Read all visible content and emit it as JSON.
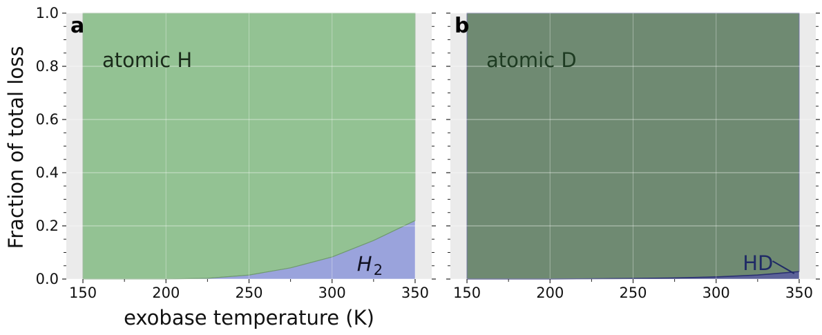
{
  "chart_data": [
    {
      "type": "area",
      "panel_label": "a",
      "x": [
        150,
        175,
        200,
        225,
        250,
        275,
        300,
        325,
        350
      ],
      "series": [
        {
          "name": "H_2",
          "values": [
            0.0,
            0.0,
            0.0,
            0.003,
            0.015,
            0.042,
            0.083,
            0.145,
            0.22
          ],
          "color": "#9aa3dc"
        },
        {
          "name": "atomic H",
          "values": [
            1.0,
            1.0,
            1.0,
            0.997,
            0.985,
            0.958,
            0.917,
            0.855,
            0.78
          ],
          "color": "#93c293"
        }
      ],
      "annotations": [
        {
          "text": "atomic H",
          "color": "#1a2a1a"
        },
        {
          "text": "H",
          "subscript": "2",
          "color": "#111122"
        }
      ],
      "xlabel": "exobase temperature (K)",
      "ylabel": "Fraction of total loss",
      "xlim": [
        140,
        360
      ],
      "ylim": [
        0,
        1
      ],
      "xticks": [
        "150",
        "200",
        "250",
        "300",
        "350"
      ],
      "yticks": [
        "0.0",
        "0.2",
        "0.4",
        "0.6",
        "0.8",
        "1.0"
      ],
      "grid": true,
      "stacked": true
    },
    {
      "type": "area",
      "panel_label": "b",
      "x": [
        150,
        175,
        200,
        225,
        250,
        275,
        300,
        325,
        350
      ],
      "series": [
        {
          "name": "HD",
          "values": [
            0.0,
            0.0,
            0.0,
            0.001,
            0.002,
            0.004,
            0.008,
            0.015,
            0.028
          ],
          "color": "#5c6299"
        },
        {
          "name": "atomic D",
          "values": [
            1.0,
            1.0,
            1.0,
            0.999,
            0.998,
            0.996,
            0.992,
            0.985,
            0.972
          ],
          "color": "#6f8a72"
        }
      ],
      "annotations": [
        {
          "text": "atomic D",
          "color": "#1e3b22"
        },
        {
          "text": "HD",
          "color": "#1f2a66"
        }
      ],
      "xlabel": "",
      "ylabel": "",
      "xlim": [
        140,
        360
      ],
      "ylim": [
        0,
        1
      ],
      "xticks": [
        "150",
        "200",
        "250",
        "300",
        "350"
      ],
      "grid": true,
      "stacked": true
    }
  ],
  "style": {
    "plot_background": "#ebebeb",
    "grid_color": "#ffffff",
    "edge_color_a": "#6f9a6f",
    "edge_color_b": "#2a3070"
  }
}
